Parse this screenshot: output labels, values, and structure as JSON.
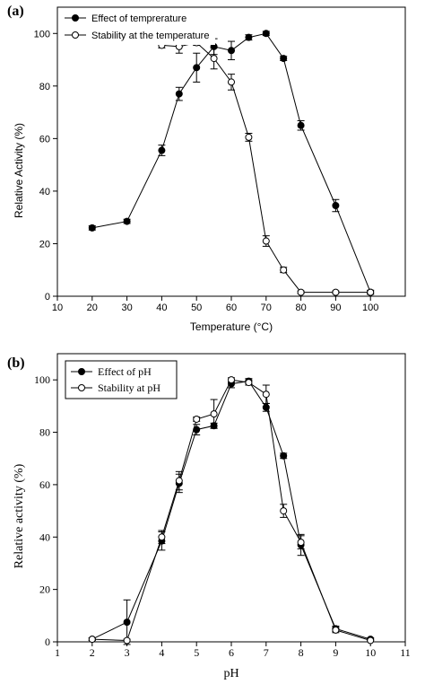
{
  "chart_data": [
    {
      "type": "line",
      "panel_label": "(a)",
      "xlabel": "Temperature (°C)",
      "ylabel": "Relative Activity (%)",
      "xlim": [
        10,
        110
      ],
      "ylim": [
        0,
        110
      ],
      "xticks": [
        10,
        20,
        30,
        40,
        50,
        60,
        70,
        80,
        90,
        100
      ],
      "yticks": [
        0,
        20,
        40,
        60,
        80,
        100
      ],
      "grid": false,
      "legend": "top-left",
      "series": [
        {
          "name": "Effect of temprerature",
          "marker": "filled-circle",
          "x": [
            20,
            30,
            40,
            45,
            50,
            55,
            60,
            65,
            70,
            75,
            80,
            90,
            100
          ],
          "y": [
            26,
            28.5,
            55.5,
            77,
            87,
            95,
            93.5,
            98.5,
            100,
            90.5,
            65,
            34.5,
            1.5
          ],
          "err": [
            0.8,
            0.8,
            2,
            2.5,
            5.5,
            3,
            3.5,
            1,
            0.8,
            0.8,
            1.8,
            2.3,
            0.8
          ]
        },
        {
          "name": "Stability at the temperature",
          "marker": "open-circle",
          "x": [
            20,
            30,
            40,
            45,
            50,
            55,
            60,
            65,
            70,
            75,
            80,
            90,
            100
          ],
          "y": [
            100,
            100,
            95.5,
            95,
            96.5,
            90.5,
            81.5,
            60.5,
            21,
            10,
            1.5,
            1.5,
            1.5
          ],
          "err": [
            3.5,
            0.5,
            1,
            2.5,
            1,
            4,
            3,
            1.5,
            2,
            1,
            0.5,
            0.5,
            0.5
          ]
        }
      ]
    },
    {
      "type": "line",
      "panel_label": "(b)",
      "xlabel": "pH",
      "ylabel": "Relative activity (%)",
      "xlim": [
        1,
        11
      ],
      "ylim": [
        0,
        110
      ],
      "xticks": [
        1,
        2,
        3,
        4,
        5,
        6,
        7,
        8,
        9,
        10,
        11
      ],
      "yticks": [
        0,
        20,
        40,
        60,
        80,
        100
      ],
      "grid": false,
      "legend": "top-left",
      "series": [
        {
          "name": "Effect of pH",
          "marker": "filled-circle",
          "x": [
            2,
            3,
            4,
            4.5,
            5,
            5.5,
            6,
            6.5,
            7,
            7.5,
            8,
            9,
            10
          ],
          "y": [
            1,
            7.5,
            38.5,
            60.5,
            81,
            82.5,
            98.5,
            99.5,
            89.5,
            71,
            37,
            5,
            1
          ],
          "err": [
            0.5,
            8.5,
            3.5,
            3.5,
            2,
            1,
            1.5,
            1,
            1.5,
            1,
            4,
            1,
            0.5
          ]
        },
        {
          "name": "Stability at pH",
          "marker": "open-circle",
          "x": [
            2,
            3,
            4,
            4.5,
            5,
            5.5,
            6,
            6.5,
            7,
            7.5,
            8,
            9,
            10
          ],
          "y": [
            1,
            0.5,
            40,
            61.5,
            85,
            87,
            100,
            99,
            94.5,
            50,
            38,
            4.5,
            0.5
          ],
          "err": [
            0.5,
            0.5,
            2.5,
            3.5,
            0.8,
            5.5,
            0.8,
            1,
            3.5,
            2.5,
            2.5,
            1,
            0.5
          ]
        }
      ]
    }
  ]
}
